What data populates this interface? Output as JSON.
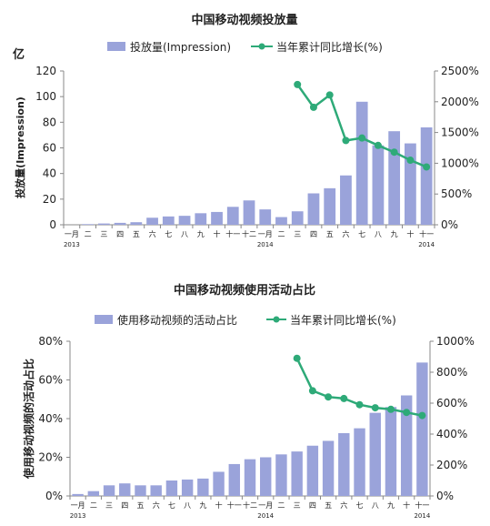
{
  "colors": {
    "bar": "#9aa3da",
    "line": "#2eaa78",
    "axis": "#888888",
    "text": "#222222"
  },
  "chart_data": [
    {
      "type": "bar+line",
      "title": "中国移动视频投放量",
      "unit_label": "亿",
      "ylabel": "投放量(Impression)",
      "ylim": [
        0,
        120
      ],
      "y_ticks": [
        "0",
        "20",
        "40",
        "60",
        "80",
        "100",
        "120"
      ],
      "y2lim": [
        0,
        2500
      ],
      "y2_ticks": [
        "0%",
        "500%",
        "1000%",
        "1500%",
        "2000%",
        "2500%"
      ],
      "categories": [
        "一月",
        "二",
        "三",
        "四",
        "五",
        "六",
        "七",
        "八",
        "九",
        "十",
        "十一",
        "十二",
        "一月",
        "二",
        "三",
        "四",
        "五",
        "六",
        "七",
        "八",
        "九",
        "十",
        "十一"
      ],
      "year_labels": [
        {
          "index": 0,
          "text": "2013"
        },
        {
          "index": 12,
          "text": "2014"
        },
        {
          "index": 22,
          "text": "2014"
        }
      ],
      "series": [
        {
          "name": "投放量(Impression)",
          "kind": "bar",
          "axis": "left",
          "values": [
            0,
            0.5,
            1,
            1.5,
            2,
            5.5,
            6.5,
            7,
            9,
            10,
            14,
            19,
            12,
            6,
            10.5,
            24.5,
            28.5,
            38.5,
            96,
            62,
            73,
            63.5,
            76
          ]
        },
        {
          "name": "当年累计同比增长(%)",
          "kind": "line",
          "axis": "right",
          "values": [
            null,
            null,
            null,
            null,
            null,
            null,
            null,
            null,
            null,
            null,
            null,
            null,
            null,
            null,
            2280,
            1910,
            2110,
            1370,
            1410,
            1290,
            1180,
            1050,
            940
          ]
        }
      ]
    },
    {
      "type": "bar+line",
      "title": "中国移动视频使用活动占比",
      "ylabel": "使用移动视频的活动占比",
      "ylim": [
        0,
        80
      ],
      "y_ticks": [
        "0%",
        "20%",
        "40%",
        "60%",
        "80%"
      ],
      "y2lim": [
        0,
        1000
      ],
      "y2_ticks": [
        "0%",
        "200%",
        "400%",
        "600%",
        "800%",
        "1000%"
      ],
      "categories": [
        "一月",
        "二",
        "三",
        "四",
        "五",
        "六",
        "七",
        "八",
        "九",
        "十",
        "十一",
        "十二",
        "一月",
        "二",
        "三",
        "四",
        "五",
        "六",
        "七",
        "八",
        "九",
        "十",
        "十一"
      ],
      "year_labels": [
        {
          "index": 0,
          "text": "2013"
        },
        {
          "index": 12,
          "text": "2014"
        },
        {
          "index": 22,
          "text": "2014"
        }
      ],
      "series": [
        {
          "name": "使用移动视频的活动占比",
          "kind": "bar",
          "axis": "left",
          "values": [
            1,
            2.5,
            5.5,
            6.5,
            5.5,
            5.5,
            8,
            8.5,
            9,
            12.5,
            16.5,
            19,
            20,
            21.5,
            23,
            26,
            28.5,
            32.5,
            35,
            43,
            46,
            52,
            69
          ]
        },
        {
          "name": "当年累计同比增长(%)",
          "kind": "line",
          "axis": "right",
          "values": [
            null,
            null,
            null,
            null,
            null,
            null,
            null,
            null,
            null,
            null,
            null,
            null,
            null,
            null,
            890,
            680,
            640,
            630,
            590,
            570,
            560,
            540,
            520
          ]
        }
      ]
    }
  ]
}
